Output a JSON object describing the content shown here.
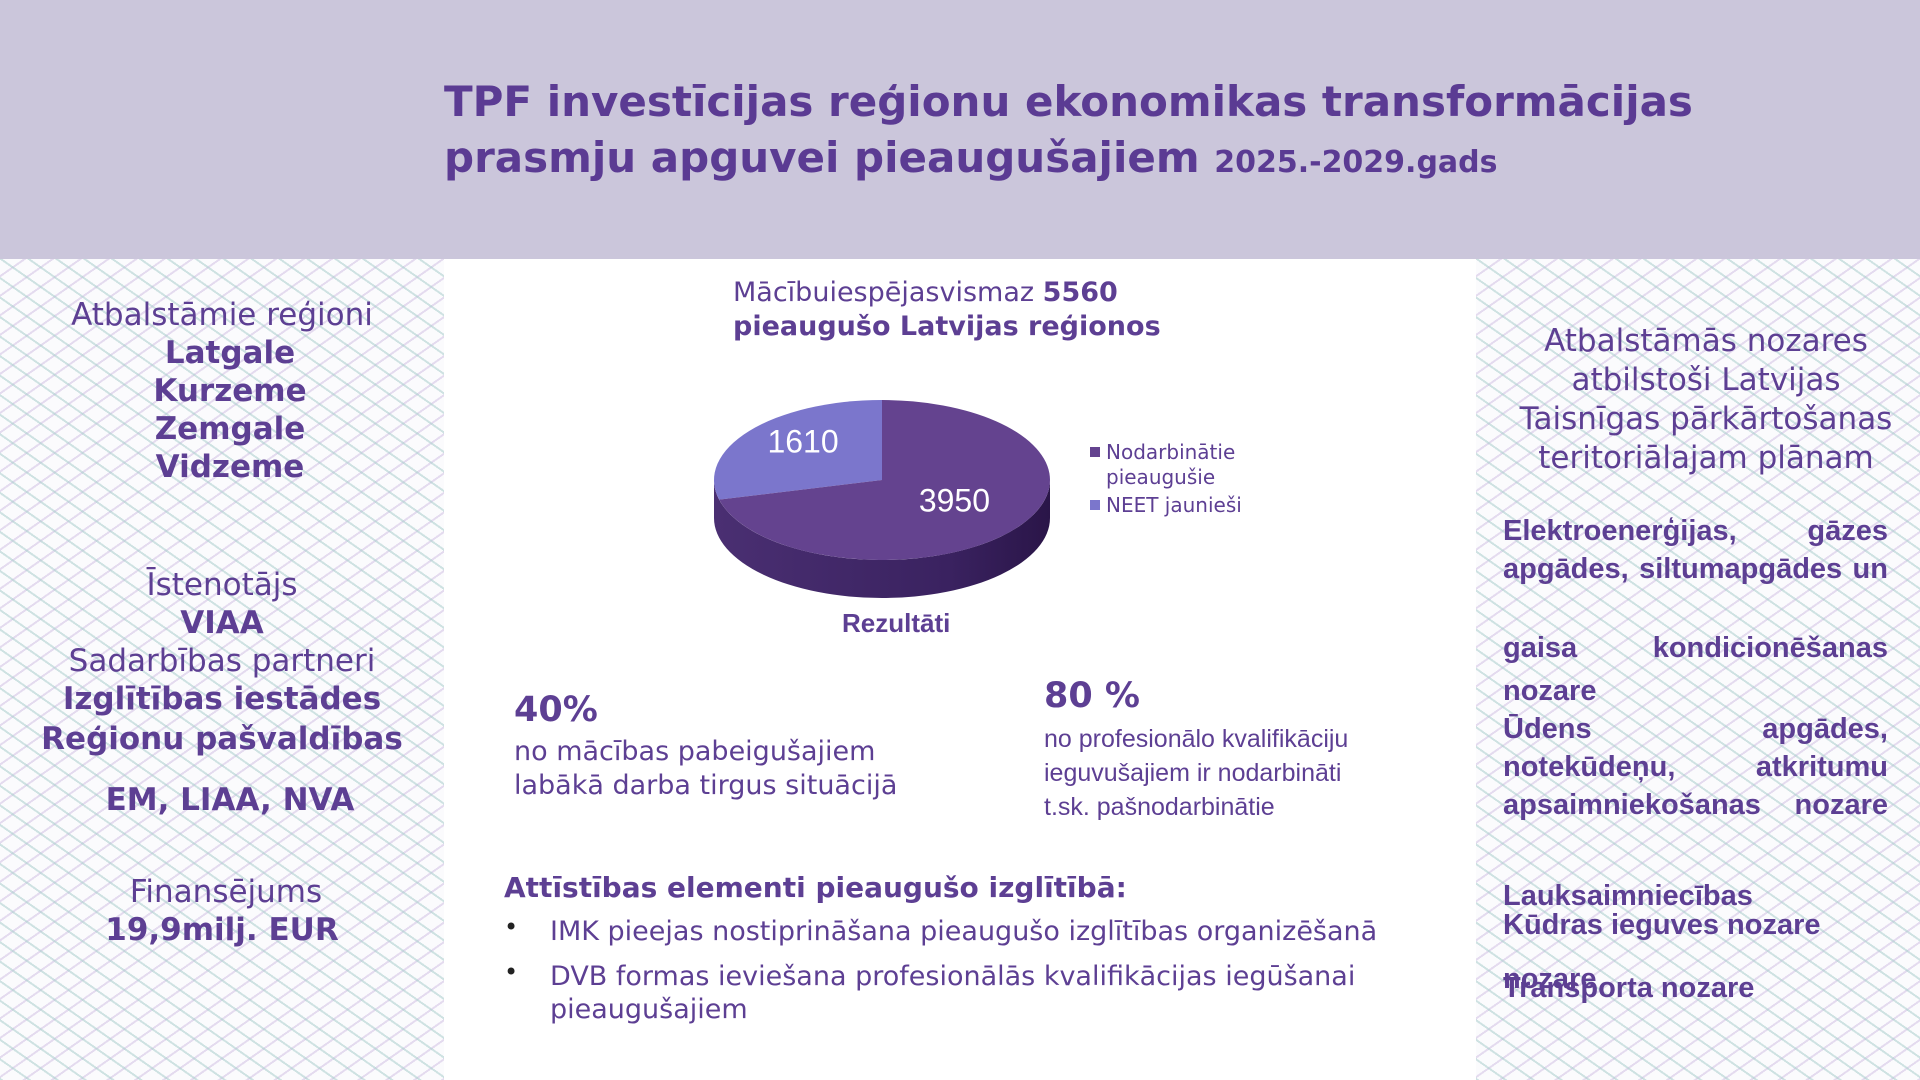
{
  "header": {
    "title_line1": "TPF investīcijas reģionu ekonomikas transformācijas",
    "title_line2": "prasmju apguvei pieaugušajiem",
    "title_year": "2025.-2029.gads"
  },
  "left": {
    "regions_label": "Atbalstāmie reģioni",
    "regions": [
      "Latgale",
      "Kurzeme",
      "Zemgale",
      "Vidzeme"
    ],
    "implementer_label": "Īstenotājs",
    "implementer": "VIAA",
    "partners_label": "Sadarbības partneri",
    "partners": [
      "Izglītības iestādes",
      "Reģionu pašvaldības"
    ],
    "agencies": "EM, LIAA, NVA",
    "funding_label": "Finansējums",
    "funding": "19,9milj. EUR"
  },
  "center": {
    "chart_title_prefix": "Mācībuiespējasvismaz",
    "chart_title_number": "5560",
    "chart_title_line2": "pieaugušo Latvijas reģionos",
    "results_label": "Rezultāti",
    "stat1": {
      "value": "40%",
      "line1": "no mācības pabeigušajiem",
      "line2": "labākā darba tirgus situācijā"
    },
    "stat2": {
      "value": "80 %",
      "line1": "no profesionālo kvalifikāciju",
      "line2": "ieguvušajiem ir nodarbināti",
      "line3": "t.sk. pašnodarbinātie"
    },
    "dev_title": "Attīstības elementi pieaugušo izglītībā:",
    "bullets": [
      "IMK pieejas nostiprināšana pieaugušo izglītības organizēšanā",
      "DVB formas ieviešana profesionālās kvalifikācijas iegūšanai pieaugušajiem"
    ]
  },
  "right": {
    "title_lines": [
      "Atbalstāmās nozares",
      "atbilstoši Latvijas",
      "Taisnīgas pārkārtošanas",
      "teritoriālajam plānam"
    ],
    "sector1": "Elektroenerģijas, gāzes apgādes, siltumapgādes un",
    "sector1b": "gaisa kondicionēšanas nozare",
    "sector2": "Ūdens apgādes, notekūdeņu, atkritumu apsaimniekošanas nozare",
    "sector3": "Lauksaimniecības",
    "sector4": "Kūdras ieguves nozare",
    "sector4_tail": "nozare",
    "sector5": "Transporta nozare"
  },
  "chart_data": {
    "type": "pie",
    "values": [
      3950,
      1610
    ],
    "labels": [
      "Nodarbinātie pieaugušie",
      "NEET jaunieši"
    ],
    "value_labels": [
      "3950",
      "1610"
    ],
    "colors": [
      "#64438f",
      "#7b76cc"
    ],
    "legend_placement": "right"
  }
}
